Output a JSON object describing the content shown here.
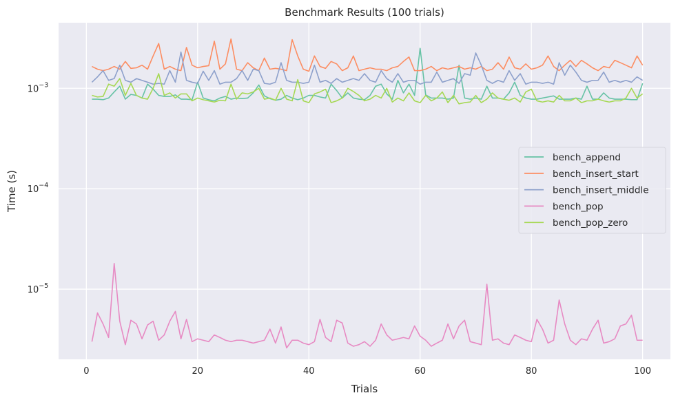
{
  "chart_data": {
    "type": "line",
    "title": "Benchmark Results (100 trials)",
    "xlabel": "Trials",
    "ylabel": "Time (s)",
    "xlim": [
      -5,
      105
    ],
    "ylim": [
      2e-06,
      0.0045
    ],
    "yscale": "log",
    "grid": true,
    "legend_position": "center-right",
    "x_ticks": [
      0,
      20,
      40,
      60,
      80,
      100
    ],
    "x_tick_labels": [
      "0",
      "20",
      "40",
      "60",
      "80",
      "100"
    ],
    "y_ticks": [
      1e-05,
      0.0001,
      0.001
    ],
    "y_tick_labels": [
      {
        "base": "10",
        "exp": "−5"
      },
      {
        "base": "10",
        "exp": "−4"
      },
      {
        "base": "10",
        "exp": "−3"
      }
    ],
    "x": [
      1,
      2,
      3,
      4,
      5,
      6,
      7,
      8,
      9,
      10,
      11,
      12,
      13,
      14,
      15,
      16,
      17,
      18,
      19,
      20,
      21,
      22,
      23,
      24,
      25,
      26,
      27,
      28,
      29,
      30,
      31,
      32,
      33,
      34,
      35,
      36,
      37,
      38,
      39,
      40,
      41,
      42,
      43,
      44,
      45,
      46,
      47,
      48,
      49,
      50,
      51,
      52,
      53,
      54,
      55,
      56,
      57,
      58,
      59,
      60,
      61,
      62,
      63,
      64,
      65,
      66,
      67,
      68,
      69,
      70,
      71,
      72,
      73,
      74,
      75,
      76,
      77,
      78,
      79,
      80,
      81,
      82,
      83,
      84,
      85,
      86,
      87,
      88,
      89,
      90,
      91,
      92,
      93,
      94,
      95,
      96,
      97,
      98,
      99,
      100
    ],
    "series": [
      {
        "name": "bench_append",
        "color": "#66c2a5",
        "values": [
          0.00078,
          0.00078,
          0.00077,
          0.0008,
          0.00092,
          0.00105,
          0.00078,
          0.00087,
          0.00085,
          0.0008,
          0.0011,
          0.00098,
          0.00085,
          0.00083,
          0.00083,
          0.00086,
          0.00078,
          0.00078,
          0.00077,
          0.00115,
          0.0008,
          0.00077,
          0.00075,
          0.0008,
          0.00083,
          0.00078,
          0.0008,
          0.00079,
          0.0008,
          0.0009,
          0.00108,
          0.00084,
          0.00079,
          0.00076,
          0.00078,
          0.00085,
          0.0008,
          0.00077,
          0.0008,
          0.00085,
          0.00085,
          0.00082,
          0.0008,
          0.0011,
          0.00095,
          0.0008,
          0.0009,
          0.0008,
          0.00078,
          0.00077,
          0.00085,
          0.00105,
          0.0011,
          0.00088,
          0.00078,
          0.0012,
          0.0009,
          0.0011,
          0.00085,
          0.0025,
          0.00086,
          0.0008,
          0.0008,
          0.0008,
          0.00078,
          0.0008,
          0.0017,
          0.0008,
          0.00078,
          0.0008,
          0.00078,
          0.00105,
          0.0008,
          0.0008,
          0.00078,
          0.0009,
          0.00115,
          0.00085,
          0.0008,
          0.00078,
          0.00078,
          0.0008,
          0.00082,
          0.00084,
          0.00078,
          0.00078,
          0.00078,
          0.0008,
          0.00078,
          0.00105,
          0.00078,
          0.00078,
          0.0009,
          0.0008,
          0.00078,
          0.00078,
          0.00078,
          0.00077,
          0.00077,
          0.00112
        ]
      },
      {
        "name": "bench_insert_start",
        "color": "#fc8d62",
        "values": [
          0.00165,
          0.00155,
          0.0015,
          0.00155,
          0.00165,
          0.00155,
          0.00185,
          0.00158,
          0.0016,
          0.0017,
          0.00155,
          0.0021,
          0.0028,
          0.00155,
          0.00165,
          0.00155,
          0.0015,
          0.00255,
          0.0017,
          0.0016,
          0.00165,
          0.00168,
          0.00295,
          0.00155,
          0.00175,
          0.0031,
          0.00155,
          0.0015,
          0.0018,
          0.0016,
          0.0015,
          0.002,
          0.00155,
          0.00158,
          0.00155,
          0.0015,
          0.00305,
          0.0021,
          0.00155,
          0.00148,
          0.0021,
          0.00165,
          0.00158,
          0.00185,
          0.00175,
          0.0015,
          0.0016,
          0.0021,
          0.0015,
          0.00155,
          0.0016,
          0.00155,
          0.00155,
          0.0015,
          0.0016,
          0.00165,
          0.00185,
          0.00205,
          0.0015,
          0.0015,
          0.00155,
          0.00165,
          0.0015,
          0.0016,
          0.00155,
          0.0016,
          0.00165,
          0.00155,
          0.0016,
          0.00155,
          0.00165,
          0.0015,
          0.00155,
          0.0018,
          0.00155,
          0.00205,
          0.0016,
          0.00155,
          0.00175,
          0.00155,
          0.0016,
          0.0017,
          0.0021,
          0.00165,
          0.0015,
          0.0017,
          0.0019,
          0.00165,
          0.0019,
          0.00175,
          0.0016,
          0.0015,
          0.00165,
          0.0016,
          0.0019,
          0.0018,
          0.0017,
          0.0016,
          0.0021,
          0.0017
        ]
      },
      {
        "name": "bench_insert_middle",
        "color": "#8da0cb",
        "values": [
          0.00115,
          0.0013,
          0.0015,
          0.0012,
          0.00125,
          0.0017,
          0.0012,
          0.00115,
          0.00125,
          0.0012,
          0.00115,
          0.0011,
          0.00112,
          0.0011,
          0.0015,
          0.00115,
          0.0023,
          0.0012,
          0.00115,
          0.00112,
          0.00148,
          0.0012,
          0.0015,
          0.0011,
          0.00115,
          0.00115,
          0.00125,
          0.0015,
          0.0012,
          0.00155,
          0.0015,
          0.00112,
          0.0011,
          0.00115,
          0.0018,
          0.0012,
          0.00115,
          0.00115,
          0.00112,
          0.00115,
          0.0017,
          0.00115,
          0.0012,
          0.00112,
          0.00125,
          0.00115,
          0.0012,
          0.00125,
          0.0012,
          0.0014,
          0.0012,
          0.00115,
          0.0015,
          0.00125,
          0.00115,
          0.0014,
          0.00115,
          0.0012,
          0.0012,
          0.0011,
          0.00115,
          0.00115,
          0.00145,
          0.00115,
          0.0012,
          0.00125,
          0.00112,
          0.0014,
          0.00135,
          0.00225,
          0.0017,
          0.0012,
          0.00112,
          0.0012,
          0.00115,
          0.0015,
          0.0012,
          0.0014,
          0.0011,
          0.00115,
          0.00115,
          0.00112,
          0.00115,
          0.0011,
          0.0018,
          0.00135,
          0.0017,
          0.00145,
          0.0012,
          0.00115,
          0.0012,
          0.0012,
          0.00145,
          0.00115,
          0.0012,
          0.00115,
          0.0012,
          0.00115,
          0.0013,
          0.0012
        ]
      },
      {
        "name": "bench_pop",
        "color": "#e78ac3",
        "values": [
          3e-06,
          5.8e-06,
          4.5e-06,
          3.3e-06,
          1.8e-05,
          4.8e-06,
          2.8e-06,
          4.9e-06,
          4.5e-06,
          3.2e-06,
          4.4e-06,
          4.8e-06,
          3.1e-06,
          3.5e-06,
          4.8e-06,
          6e-06,
          3.2e-06,
          5e-06,
          3e-06,
          3.2e-06,
          3.1e-06,
          3e-06,
          3.5e-06,
          3.3e-06,
          3.1e-06,
          3e-06,
          3.1e-06,
          3.1e-06,
          3e-06,
          2.9e-06,
          3e-06,
          3.1e-06,
          4e-06,
          2.9e-06,
          4.2e-06,
          2.6e-06,
          3.1e-06,
          3.1e-06,
          2.9e-06,
          2.8e-06,
          3e-06,
          5e-06,
          3.3e-06,
          3e-06,
          4.9e-06,
          4.6e-06,
          2.9e-06,
          2.7e-06,
          2.8e-06,
          3e-06,
          2.7e-06,
          3.1e-06,
          4.5e-06,
          3.5e-06,
          3.1e-06,
          3.2e-06,
          3.3e-06,
          3.2e-06,
          4.3e-06,
          3.4e-06,
          3.1e-06,
          2.7e-06,
          2.9e-06,
          3.1e-06,
          4.5e-06,
          3.2e-06,
          4.3e-06,
          4.9e-06,
          3e-06,
          2.9e-06,
          2.8e-06,
          1.12e-05,
          3.1e-06,
          3.2e-06,
          2.9e-06,
          2.8e-06,
          3.5e-06,
          3.3e-06,
          3.1e-06,
          3e-06,
          5e-06,
          4e-06,
          2.9e-06,
          3.1e-06,
          7.8e-06,
          4.5e-06,
          3.1e-06,
          2.8e-06,
          3.2e-06,
          3.1e-06,
          4e-06,
          4.9e-06,
          2.9e-06,
          3e-06,
          3.2e-06,
          4.3e-06,
          4.5e-06,
          5.5e-06,
          3.1e-06,
          3.1e-06
        ]
      },
      {
        "name": "bench_pop_zero",
        "color": "#a6d854",
        "values": [
          0.00085,
          0.00082,
          0.00083,
          0.0011,
          0.00105,
          0.00125,
          0.00085,
          0.00112,
          0.00085,
          0.0008,
          0.00078,
          0.001,
          0.0014,
          0.00085,
          0.0009,
          0.0008,
          0.00088,
          0.00088,
          0.00075,
          0.0008,
          0.00077,
          0.00075,
          0.00073,
          0.00076,
          0.00075,
          0.0011,
          0.00078,
          0.0009,
          0.00088,
          0.00092,
          0.001,
          0.00078,
          0.0008,
          0.00076,
          0.001,
          0.00078,
          0.00075,
          0.00122,
          0.00075,
          0.00072,
          0.00088,
          0.00092,
          0.00098,
          0.00072,
          0.00075,
          0.0008,
          0.001,
          0.00093,
          0.00085,
          0.00075,
          0.00078,
          0.00085,
          0.0008,
          0.001,
          0.00073,
          0.0008,
          0.00075,
          0.0009,
          0.00075,
          0.00072,
          0.00085,
          0.00075,
          0.0008,
          0.00092,
          0.00072,
          0.00085,
          0.0007,
          0.00072,
          0.00073,
          0.00085,
          0.00072,
          0.00078,
          0.0009,
          0.0008,
          0.00078,
          0.00076,
          0.0008,
          0.00073,
          0.00092,
          0.00098,
          0.00075,
          0.00073,
          0.00075,
          0.00073,
          0.00085,
          0.00075,
          0.00075,
          0.0008,
          0.00072,
          0.00075,
          0.00075,
          0.00078,
          0.00075,
          0.00073,
          0.00075,
          0.00075,
          0.0008,
          0.001,
          0.0008,
          0.00088
        ]
      }
    ]
  }
}
